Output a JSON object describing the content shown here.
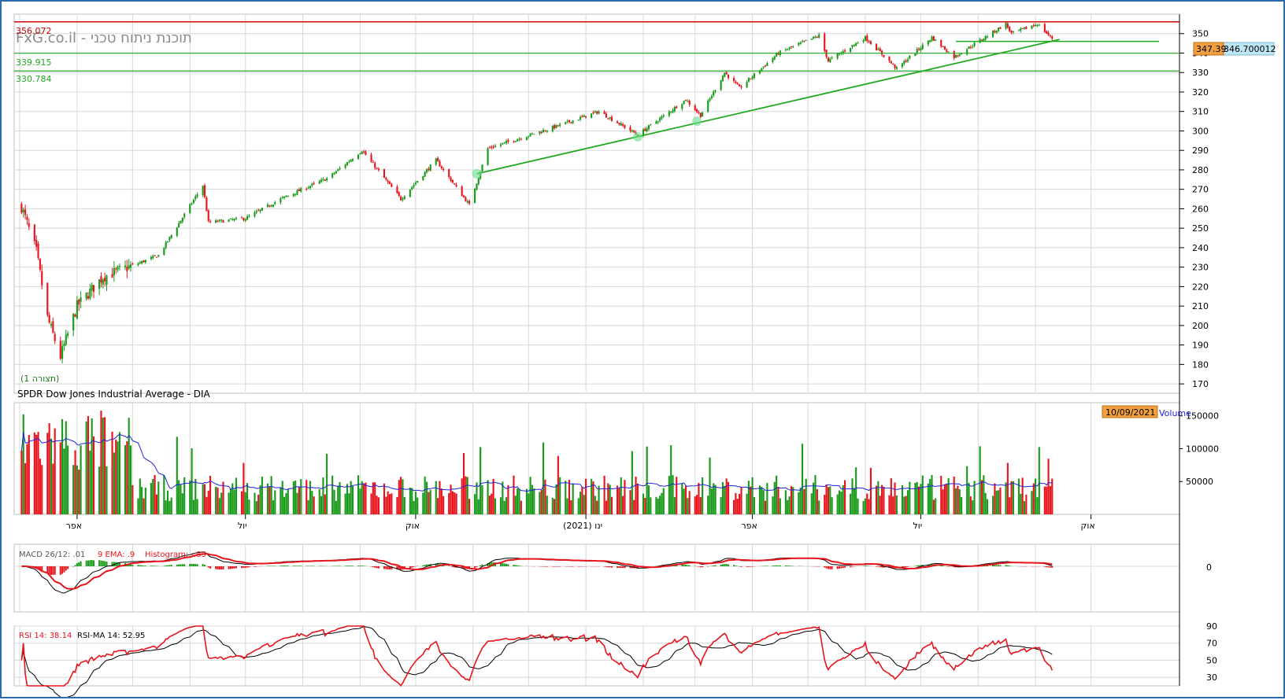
{
  "watermark": "FxG.co.il - תוכנת ניתוח טכני",
  "panel_price": {
    "yticks": [
      170,
      180,
      190,
      200,
      210,
      220,
      230,
      240,
      250,
      260,
      270,
      280,
      290,
      300,
      310,
      320,
      330,
      340,
      350
    ],
    "ylim": [
      166,
      360
    ],
    "resistance": "356.072",
    "support1": "339.915",
    "support2": "330.784",
    "last_price_tag": "347.39",
    "trend_value_tag": "346.700012",
    "pattern_label": "(1 תצורה)",
    "instrument_title": "SPDR Dow Jones Industrial Average - DIA"
  },
  "panel_volume": {
    "yticks": [
      "50000",
      "100000",
      "150000"
    ],
    "date_tag": "10/09/2021",
    "legend": "Volume"
  },
  "x_axis": {
    "labels": [
      "אפר",
      "יול",
      "אוק",
      "ינו (2021)",
      "אפר",
      "יול",
      "אוק"
    ]
  },
  "panel_macd": {
    "legend_macd": "MACD 26/12: .01",
    "legend_ema": "9 EMA: .9",
    "legend_hist": "Histogram: -.89",
    "ytick": "0"
  },
  "panel_rsi": {
    "legend_rsi": "RSI 14: 38.14",
    "legend_ma": "RSI-MA 14: 52.95",
    "yticks": [
      "30",
      "50",
      "70",
      "90"
    ]
  },
  "colors": {
    "up": "#1a9a1a",
    "down": "#e8141c",
    "resistance": "#cc0000",
    "support": "#22aa22",
    "grid": "#d8d8d8",
    "ma_line": "#2222dd"
  },
  "chart_data": {
    "type": "candlestick",
    "title": "SPDR Dow Jones Industrial Average - DIA",
    "x_range": [
      "2020-03",
      "2021-10"
    ],
    "anchor_closes": [
      {
        "date": "2020-03-02",
        "close": 261
      },
      {
        "date": "2020-03-10",
        "close": 238
      },
      {
        "date": "2020-03-16",
        "close": 204
      },
      {
        "date": "2020-03-23",
        "close": 184
      },
      {
        "date": "2020-04-01",
        "close": 210
      },
      {
        "date": "2020-04-15",
        "close": 225
      },
      {
        "date": "2020-05-15",
        "close": 236
      },
      {
        "date": "2020-06-08",
        "close": 272
      },
      {
        "date": "2020-06-11",
        "close": 253
      },
      {
        "date": "2020-07-01",
        "close": 255
      },
      {
        "date": "2020-07-20",
        "close": 265
      },
      {
        "date": "2020-08-15",
        "close": 276
      },
      {
        "date": "2020-09-02",
        "close": 290
      },
      {
        "date": "2020-09-23",
        "close": 265
      },
      {
        "date": "2020-10-12",
        "close": 285
      },
      {
        "date": "2020-10-30",
        "close": 262
      },
      {
        "date": "2020-11-09",
        "close": 291
      },
      {
        "date": "2020-12-15",
        "close": 302
      },
      {
        "date": "2021-01-08",
        "close": 310
      },
      {
        "date": "2021-01-29",
        "close": 298
      },
      {
        "date": "2021-02-24",
        "close": 316
      },
      {
        "date": "2021-03-04",
        "close": 308
      },
      {
        "date": "2021-03-17",
        "close": 330
      },
      {
        "date": "2021-03-25",
        "close": 322
      },
      {
        "date": "2021-04-15",
        "close": 340
      },
      {
        "date": "2021-05-07",
        "close": 349
      },
      {
        "date": "2021-05-12",
        "close": 336
      },
      {
        "date": "2021-06-01",
        "close": 348
      },
      {
        "date": "2021-06-18",
        "close": 332
      },
      {
        "date": "2021-07-07",
        "close": 348
      },
      {
        "date": "2021-07-19",
        "close": 338
      },
      {
        "date": "2021-08-16",
        "close": 355
      },
      {
        "date": "2021-08-19",
        "close": 350
      },
      {
        "date": "2021-09-02",
        "close": 355
      },
      {
        "date": "2021-09-10",
        "close": 347.39
      }
    ],
    "horizontal_levels": [
      356.072,
      339.915,
      330.784
    ],
    "trendline": {
      "start": {
        "date": "2020-11-03",
        "value": 278
      },
      "end": {
        "date": "2021-09-14",
        "value": 347
      }
    },
    "volume": {
      "ma_period": "unknown",
      "peak": 165000,
      "typical": 40000
    },
    "macd": {
      "macd": 0.01,
      "signal_ema9": 0.9,
      "histogram": -0.89
    },
    "rsi": {
      "rsi14": 38.14,
      "rsi_ma14": 52.95,
      "ylim": [
        20,
        90
      ]
    }
  }
}
